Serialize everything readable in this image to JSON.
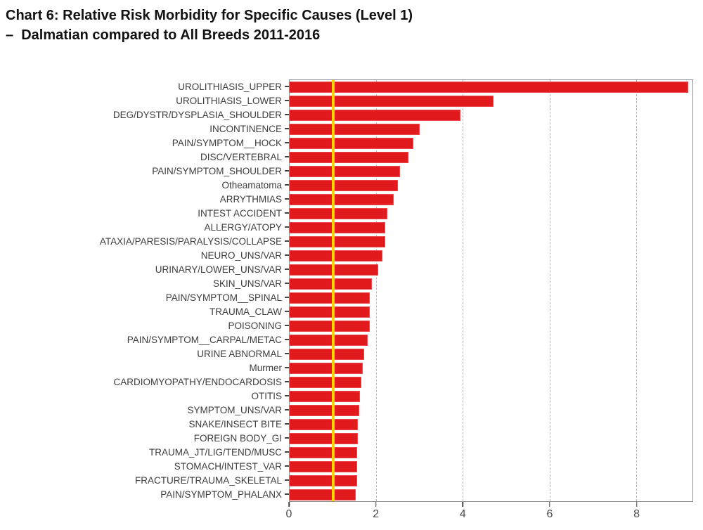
{
  "title": {
    "line1": "Chart 6: Relative Risk Morbidity for Specific Causes (Level 1)",
    "line2": "–  Dalmatian compared to All Breeds 2011-2016"
  },
  "chart_data": {
    "type": "bar",
    "orientation": "horizontal",
    "title": "Chart 6: Relative Risk Morbidity for Specific Causes (Level 1)",
    "subtitle": "– Dalmatian compared to All Breeds 2011-2016",
    "categories": [
      "UROLITHIASIS_UPPER",
      "UROLITHIASIS_LOWER",
      "DEG/DYSTR/DYSPLASIA_SHOULDER",
      "INCONTINENCE",
      "PAIN/SYMPTOM__HOCK",
      "DISC/VERTEBRAL",
      "PAIN/SYMPTOM_SHOULDER",
      "Otheamatoma",
      "ARRYTHMIAS",
      "INTEST ACCIDENT",
      "ALLERGY/ATOPY",
      "ATAXIA/PARESIS/PARALYSIS/COLLAPSE",
      "NEURO_UNS/VAR",
      "URINARY/LOWER_UNS/VAR",
      "SKIN_UNS/VAR",
      "PAIN/SYMPTOM__SPINAL",
      "TRAUMA_CLAW",
      "POISONING",
      "PAIN/SYMPTOM__CARPAL/METAC",
      "URINE ABNORMAL",
      "Murmer",
      "CARDIOMYOPATHY/ENDOCARDOSIS",
      "OTITIS",
      "SYMPTOM_UNS/VAR",
      "SNAKE/INSECT BITE",
      "FOREIGN BODY_GI",
      "TRAUMA_JT/LIG/TEND/MUSC",
      "STOMACH/INTEST_VAR",
      "FRACTURE/TRAUMA_SKELETAL",
      "PAIN/SYMPTOM_PHALANX"
    ],
    "values": [
      9.2,
      4.7,
      3.95,
      3.0,
      2.85,
      2.75,
      2.55,
      2.5,
      2.4,
      2.25,
      2.2,
      2.2,
      2.15,
      2.05,
      1.9,
      1.85,
      1.85,
      1.85,
      1.8,
      1.72,
      1.68,
      1.65,
      1.62,
      1.6,
      1.58,
      1.57,
      1.55,
      1.55,
      1.55,
      1.52
    ],
    "xlabel": "",
    "ylabel": "",
    "xlim": [
      0,
      9.3
    ],
    "x_ticks": [
      0,
      2,
      4,
      6,
      8
    ],
    "x_tick_labels": [
      "0",
      "2",
      "4",
      "6",
      "8"
    ],
    "reference_line_x": 1,
    "grid": "vertical dashed gridlines at x = 2, 4, 6, 8, drawn behind bars",
    "legend": "none",
    "colors": {
      "bar": "#e2191d",
      "bar_edge": "#e8494d",
      "reference_line": "#ffd400",
      "plot_border": "#909090",
      "gridline": "#b5b5b5",
      "label_text": "#3d3d3d",
      "axis_tick": "#444444",
      "title_text": "#111111"
    }
  }
}
